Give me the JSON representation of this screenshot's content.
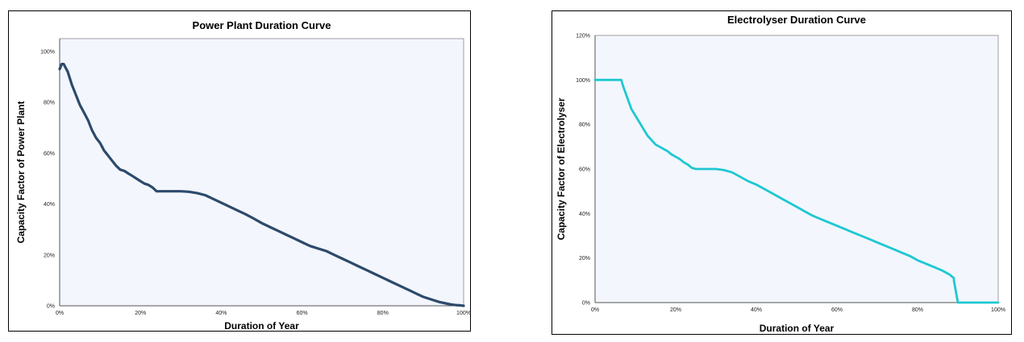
{
  "chart_data": [
    {
      "type": "line",
      "title": "Power Plant Duration Curve",
      "xlabel": "Duration of Year",
      "ylabel": "Capacity Factor of Power Plant",
      "xlim": [
        0,
        100
      ],
      "ylim": [
        0,
        105
      ],
      "xticks": [
        "0%",
        "20%",
        "40%",
        "60%",
        "80%",
        "100%"
      ],
      "yticks": [
        "0%",
        "20%",
        "40%",
        "60%",
        "80%",
        "100%"
      ],
      "xtick_values": [
        0,
        20,
        40,
        60,
        80,
        100
      ],
      "ytick_values": [
        0,
        20,
        40,
        60,
        80,
        100
      ],
      "grid": false,
      "line_color": "#2d4a6b",
      "plot_background": "#f3f6fd",
      "series": [
        {
          "x": [
            0,
            0.5,
            1,
            2,
            3,
            4,
            5,
            6,
            7,
            8,
            9,
            10,
            11,
            12,
            13,
            14,
            15,
            16,
            17,
            18,
            19,
            20,
            21,
            22,
            23,
            24,
            25,
            26,
            28,
            30,
            32,
            34,
            36,
            38,
            40,
            42,
            44,
            46,
            48,
            50,
            52,
            54,
            56,
            58,
            60,
            62,
            64,
            66,
            68,
            70,
            72,
            74,
            76,
            78,
            80,
            82,
            84,
            86,
            88,
            90,
            92,
            94,
            96,
            97,
            98,
            99,
            99.5,
            100
          ],
          "y": [
            93,
            95,
            95,
            92,
            87,
            83,
            79,
            76,
            73,
            69,
            66,
            64,
            61,
            59,
            57,
            55,
            53.5,
            53,
            52,
            51,
            50,
            49,
            48,
            47.5,
            46.5,
            45,
            45,
            45,
            45,
            45,
            44.8,
            44.3,
            43.5,
            42,
            40.5,
            39,
            37.5,
            36,
            34.3,
            32.5,
            31,
            29.5,
            28,
            26.5,
            25,
            23.5,
            22.5,
            21.5,
            20,
            18.5,
            17,
            15.5,
            14,
            12.5,
            11,
            9.5,
            8,
            6.5,
            5,
            3.5,
            2.5,
            1.5,
            0.8,
            0.5,
            0.3,
            0.2,
            0.1,
            0
          ]
        }
      ]
    },
    {
      "type": "line",
      "title": "Electrolyser Duration Curve",
      "xlabel": "Duration of Year",
      "ylabel": "Capacity Factor of Electrolyser",
      "xlim": [
        0,
        100
      ],
      "ylim": [
        0,
        120
      ],
      "xticks": [
        "0%",
        "20%",
        "40%",
        "60%",
        "80%",
        "100%"
      ],
      "yticks": [
        "0%",
        "20%",
        "40%",
        "60%",
        "80%",
        "100%",
        "120%"
      ],
      "xtick_values": [
        0,
        20,
        40,
        60,
        80,
        100
      ],
      "ytick_values": [
        0,
        20,
        40,
        60,
        80,
        100,
        120
      ],
      "grid": false,
      "line_color": "#1ec8d2",
      "plot_background": "#f3f6fd",
      "series": [
        {
          "x": [
            0,
            6.5,
            7,
            8,
            9,
            10,
            11,
            12,
            13,
            14,
            15,
            16,
            17,
            18,
            19,
            20,
            21,
            22,
            23,
            24,
            25,
            26,
            28,
            30,
            32,
            34,
            36,
            38,
            40,
            42,
            44,
            46,
            48,
            50,
            52,
            54,
            56,
            58,
            60,
            62,
            64,
            66,
            68,
            70,
            72,
            74,
            76,
            78,
            80,
            82,
            84,
            86,
            88,
            89,
            89,
            90,
            95,
            100
          ],
          "y": [
            100,
            100,
            97,
            92,
            87,
            84,
            81,
            78,
            75,
            73,
            71,
            70,
            69,
            68,
            66.5,
            65.5,
            64.5,
            63,
            62,
            60.5,
            60,
            60,
            60,
            60,
            59.5,
            58.5,
            56.5,
            54.5,
            53,
            51,
            49,
            47,
            45,
            43,
            41,
            39,
            37.5,
            36,
            34.5,
            33,
            31.5,
            30,
            28.5,
            27,
            25.5,
            24,
            22.5,
            21,
            19,
            17.5,
            16,
            14.5,
            12.5,
            11,
            10,
            0,
            0,
            0
          ]
        }
      ]
    }
  ]
}
